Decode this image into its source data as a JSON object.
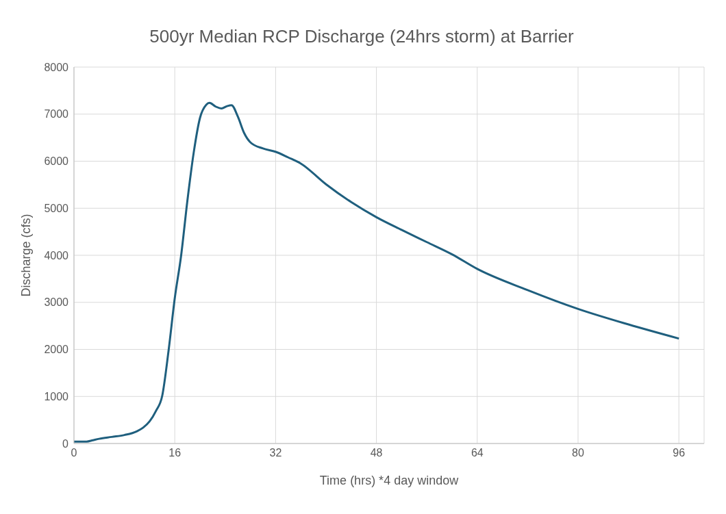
{
  "chart_data": {
    "type": "line",
    "title": "500yr Median RCP Discharge (24hrs storm) at Barrier",
    "xlabel": "Time (hrs) *4 day window",
    "ylabel": "Discharge (cfs)",
    "series": [
      {
        "color": "#1f5f7e",
        "x": [
          0,
          2,
          3,
          4,
          6,
          8,
          10,
          11,
          12,
          13,
          14,
          15,
          16,
          17,
          18,
          19,
          20,
          21,
          21.5,
          22.5,
          23.4,
          24.3,
          25,
          26,
          27,
          28,
          30,
          32,
          34,
          36,
          40,
          44,
          48,
          52,
          56,
          60,
          64,
          72,
          80,
          88,
          96
        ],
        "values": [
          40,
          40,
          70,
          100,
          140,
          180,
          260,
          340,
          470,
          690,
          1010,
          1960,
          3090,
          3990,
          5160,
          6180,
          6920,
          7200,
          7240,
          7160,
          7120,
          7170,
          7190,
          6950,
          6600,
          6400,
          6270,
          6200,
          6080,
          5950,
          5510,
          5130,
          4810,
          4540,
          4280,
          4020,
          3710,
          3260,
          2860,
          2530,
          2230
        ]
      }
    ],
    "xlim": [
      0,
      100
    ],
    "xticks": [
      0,
      16,
      32,
      48,
      64,
      80,
      96
    ],
    "ylim": [
      0,
      8000
    ],
    "yticks": [
      0,
      1000,
      2000,
      3000,
      4000,
      5000,
      6000,
      7000,
      8000
    ],
    "grid": true,
    "legend": false,
    "marker": "none",
    "line_style": "solid"
  }
}
